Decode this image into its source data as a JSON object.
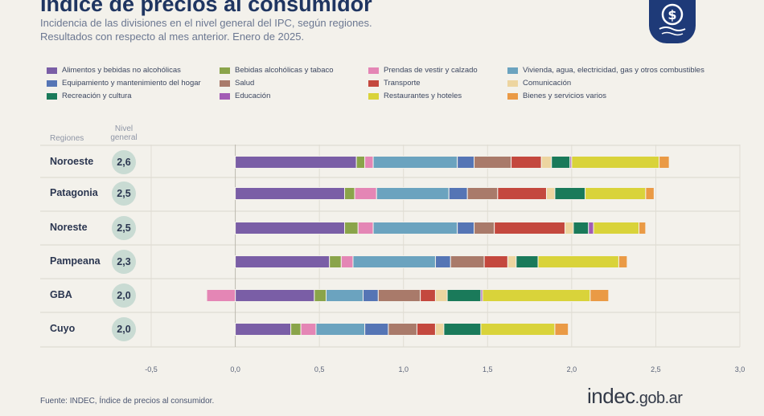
{
  "header": {
    "title": "Índice de precios al consumidor",
    "subtitle_line1": "Incidencia de las divisiones en el nivel general del IPC, según regiones.",
    "subtitle_line2": "Resultados con respecto al mes anterior. Enero de 2025."
  },
  "table_headers": {
    "regiones": "Regiones",
    "nivel_line1": "Nivel",
    "nivel_line2": "general"
  },
  "footer": {
    "source": "Fuente: INDEC, Índice de precios al consumidor.",
    "brand_main": "indec",
    "brand_domain": ".gob.ar"
  },
  "logo_icon": "dollar-shield-icon",
  "chart_data": {
    "type": "bar",
    "orientation": "horizontal",
    "stacked": true,
    "xlim": [
      -0.5,
      3.0
    ],
    "x_ticks": [
      -0.5,
      0.0,
      0.5,
      1.0,
      1.5,
      2.0,
      2.5,
      3.0
    ],
    "x_tick_labels": [
      "-0,5",
      "0,0",
      "0,5",
      "1,0",
      "1,5",
      "2,0",
      "2,5",
      "3,0"
    ],
    "grid": true,
    "legend_position": "top",
    "categories": [
      "Noroeste",
      "Patagonia",
      "Noreste",
      "Pampeana",
      "GBA",
      "Cuyo"
    ],
    "nivel_general": [
      "2,6",
      "2,5",
      "2,5",
      "2,3",
      "2,0",
      "2,0"
    ],
    "series": [
      {
        "name": "Alimentos y bebidas no alcohólicas",
        "color": "#7a5ea6",
        "values": [
          0.72,
          0.65,
          0.65,
          0.56,
          0.47,
          0.33
        ]
      },
      {
        "name": "Bebidas alcohólicas y tabaco",
        "color": "#8aa44a",
        "values": [
          0.05,
          0.06,
          0.08,
          0.07,
          0.07,
          0.06
        ]
      },
      {
        "name": "Prendas de vestir y calzado",
        "color": "#e486b5",
        "values": [
          0.05,
          0.13,
          0.09,
          0.07,
          -0.17,
          0.09
        ]
      },
      {
        "name": "Vivienda, agua, electricidad, gas y otros combustibles",
        "color": "#6ba3bf",
        "values": [
          0.5,
          0.43,
          0.5,
          0.49,
          0.22,
          0.29
        ]
      },
      {
        "name": "Equipamiento y mantenimiento del hogar",
        "color": "#5575b5",
        "values": [
          0.1,
          0.11,
          0.1,
          0.09,
          0.09,
          0.14
        ]
      },
      {
        "name": "Salud",
        "color": "#a97a6a",
        "values": [
          0.22,
          0.18,
          0.12,
          0.2,
          0.25,
          0.17
        ]
      },
      {
        "name": "Transporte",
        "color": "#c4483e",
        "values": [
          0.18,
          0.29,
          0.42,
          0.14,
          0.09,
          0.11
        ]
      },
      {
        "name": "Comunicación",
        "color": "#edd5a0",
        "values": [
          0.06,
          0.05,
          0.05,
          0.05,
          0.07,
          0.05
        ]
      },
      {
        "name": "Recreación y cultura",
        "color": "#1a7a5a",
        "values": [
          0.11,
          0.18,
          0.09,
          0.13,
          0.2,
          0.22
        ]
      },
      {
        "name": "Educación",
        "color": "#a35bb5",
        "values": [
          0.01,
          0.0,
          0.03,
          0.0,
          0.01,
          0.0
        ]
      },
      {
        "name": "Restaurantes y hoteles",
        "color": "#d9d33a",
        "values": [
          0.52,
          0.36,
          0.27,
          0.48,
          0.64,
          0.44
        ]
      },
      {
        "name": "Bienes y servicios varios",
        "color": "#ea9a45",
        "values": [
          0.06,
          0.05,
          0.04,
          0.05,
          0.11,
          0.08
        ]
      }
    ]
  }
}
